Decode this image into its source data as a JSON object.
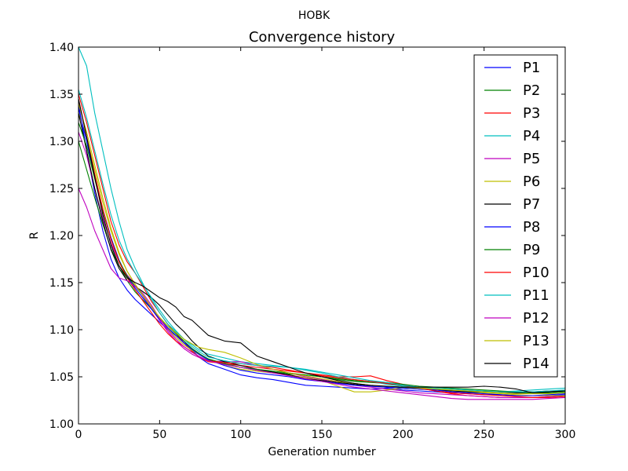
{
  "figure_title": "HOBK",
  "chart_data": {
    "type": "line",
    "title": "Convergence history",
    "xlabel": "Generation number",
    "ylabel": "R",
    "xlim": [
      0,
      300
    ],
    "ylim": [
      1.0,
      1.4
    ],
    "xticks": [
      0,
      50,
      100,
      150,
      200,
      250,
      300
    ],
    "yticks": [
      1.0,
      1.05,
      1.1,
      1.15,
      1.2,
      1.25,
      1.3,
      1.35,
      1.4
    ],
    "xtick_labels": [
      "0",
      "50",
      "100",
      "150",
      "200",
      "250",
      "300"
    ],
    "ytick_labels": [
      "1.00",
      "1.05",
      "1.10",
      "1.15",
      "1.20",
      "1.25",
      "1.30",
      "1.35",
      "1.40"
    ],
    "grid": false,
    "legend": "top-right",
    "x": [
      0,
      5,
      10,
      15,
      20,
      25,
      30,
      35,
      40,
      45,
      50,
      55,
      60,
      65,
      70,
      75,
      80,
      90,
      100,
      110,
      120,
      130,
      140,
      150,
      160,
      170,
      180,
      190,
      200,
      210,
      220,
      230,
      240,
      250,
      260,
      270,
      280,
      290,
      300
    ],
    "series": [
      {
        "name": "P1",
        "color": "#0000ff",
        "values": [
          1.34,
          1.29,
          1.245,
          1.205,
          1.175,
          1.155,
          1.142,
          1.132,
          1.124,
          1.116,
          1.108,
          1.1,
          1.094,
          1.088,
          1.078,
          1.07,
          1.064,
          1.058,
          1.052,
          1.049,
          1.047,
          1.044,
          1.041,
          1.04,
          1.039,
          1.038,
          1.037,
          1.038,
          1.036,
          1.035,
          1.034,
          1.033,
          1.032,
          1.031,
          1.031,
          1.03,
          1.03,
          1.03,
          1.031
        ]
      },
      {
        "name": "P2",
        "color": "#008000",
        "values": [
          1.3,
          1.27,
          1.24,
          1.212,
          1.186,
          1.168,
          1.152,
          1.14,
          1.131,
          1.122,
          1.112,
          1.102,
          1.094,
          1.086,
          1.079,
          1.073,
          1.068,
          1.064,
          1.06,
          1.057,
          1.055,
          1.053,
          1.052,
          1.05,
          1.047,
          1.045,
          1.044,
          1.043,
          1.04,
          1.038,
          1.037,
          1.036,
          1.035,
          1.034,
          1.034,
          1.033,
          1.033,
          1.033,
          1.034
        ]
      },
      {
        "name": "P3",
        "color": "#ff0000",
        "values": [
          1.35,
          1.32,
          1.285,
          1.25,
          1.215,
          1.19,
          1.172,
          1.16,
          1.145,
          1.13,
          1.118,
          1.106,
          1.096,
          1.086,
          1.077,
          1.07,
          1.066,
          1.064,
          1.062,
          1.06,
          1.058,
          1.056,
          1.054,
          1.052,
          1.05,
          1.05,
          1.051,
          1.046,
          1.042,
          1.038,
          1.035,
          1.032,
          1.03,
          1.029,
          1.028,
          1.028,
          1.028,
          1.029,
          1.03
        ]
      },
      {
        "name": "P4",
        "color": "#00bfbf",
        "values": [
          1.4,
          1.38,
          1.33,
          1.29,
          1.25,
          1.215,
          1.185,
          1.165,
          1.148,
          1.132,
          1.118,
          1.106,
          1.098,
          1.09,
          1.084,
          1.078,
          1.074,
          1.07,
          1.066,
          1.064,
          1.062,
          1.06,
          1.057,
          1.054,
          1.05,
          1.047,
          1.045,
          1.042,
          1.04,
          1.038,
          1.037,
          1.036,
          1.035,
          1.034,
          1.034,
          1.035,
          1.036,
          1.037,
          1.038
        ]
      },
      {
        "name": "P5",
        "color": "#bf00bf",
        "values": [
          1.31,
          1.285,
          1.25,
          1.218,
          1.192,
          1.172,
          1.158,
          1.148,
          1.135,
          1.122,
          1.11,
          1.098,
          1.088,
          1.08,
          1.074,
          1.07,
          1.067,
          1.066,
          1.066,
          1.062,
          1.058,
          1.054,
          1.05,
          1.047,
          1.044,
          1.041,
          1.039,
          1.037,
          1.035,
          1.033,
          1.032,
          1.031,
          1.03,
          1.029,
          1.028,
          1.028,
          1.028,
          1.029,
          1.03
        ]
      },
      {
        "name": "P6",
        "color": "#bfbf00",
        "values": [
          1.33,
          1.305,
          1.27,
          1.235,
          1.205,
          1.18,
          1.162,
          1.148,
          1.136,
          1.124,
          1.112,
          1.101,
          1.092,
          1.084,
          1.078,
          1.073,
          1.068,
          1.062,
          1.058,
          1.056,
          1.054,
          1.052,
          1.049,
          1.046,
          1.04,
          1.034,
          1.034,
          1.036,
          1.038,
          1.038,
          1.037,
          1.036,
          1.034,
          1.033,
          1.032,
          1.031,
          1.03,
          1.03,
          1.03
        ]
      },
      {
        "name": "P7",
        "color": "#000000",
        "values": [
          1.33,
          1.29,
          1.25,
          1.215,
          1.185,
          1.165,
          1.152,
          1.146,
          1.14,
          1.134,
          1.126,
          1.116,
          1.106,
          1.098,
          1.088,
          1.08,
          1.072,
          1.066,
          1.062,
          1.058,
          1.055,
          1.052,
          1.048,
          1.046,
          1.044,
          1.042,
          1.04,
          1.039,
          1.038,
          1.037,
          1.036,
          1.035,
          1.034,
          1.034,
          1.034,
          1.033,
          1.034,
          1.035,
          1.035
        ]
      },
      {
        "name": "P8",
        "color": "#0000ff",
        "values": [
          1.335,
          1.3,
          1.262,
          1.228,
          1.198,
          1.174,
          1.156,
          1.144,
          1.133,
          1.122,
          1.111,
          1.102,
          1.094,
          1.086,
          1.079,
          1.073,
          1.068,
          1.062,
          1.057,
          1.054,
          1.052,
          1.05,
          1.047,
          1.045,
          1.043,
          1.041,
          1.04,
          1.039,
          1.038,
          1.037,
          1.036,
          1.034,
          1.033,
          1.032,
          1.031,
          1.03,
          1.03,
          1.031,
          1.032
        ]
      },
      {
        "name": "P9",
        "color": "#008000",
        "values": [
          1.32,
          1.295,
          1.26,
          1.226,
          1.196,
          1.173,
          1.157,
          1.146,
          1.136,
          1.124,
          1.113,
          1.104,
          1.096,
          1.088,
          1.08,
          1.074,
          1.069,
          1.064,
          1.06,
          1.058,
          1.056,
          1.054,
          1.052,
          1.05,
          1.048,
          1.046,
          1.045,
          1.044,
          1.042,
          1.04,
          1.039,
          1.038,
          1.037,
          1.036,
          1.035,
          1.034,
          1.034,
          1.034,
          1.035
        ]
      },
      {
        "name": "P10",
        "color": "#ff0000",
        "values": [
          1.345,
          1.305,
          1.265,
          1.228,
          1.196,
          1.172,
          1.155,
          1.142,
          1.13,
          1.118,
          1.106,
          1.096,
          1.088,
          1.082,
          1.076,
          1.071,
          1.067,
          1.065,
          1.064,
          1.062,
          1.06,
          1.057,
          1.054,
          1.051,
          1.049,
          1.047,
          1.045,
          1.043,
          1.041,
          1.038,
          1.035,
          1.033,
          1.032,
          1.031,
          1.03,
          1.029,
          1.028,
          1.028,
          1.029
        ]
      },
      {
        "name": "P11",
        "color": "#00bfbf",
        "values": [
          1.355,
          1.325,
          1.29,
          1.255,
          1.222,
          1.195,
          1.175,
          1.16,
          1.147,
          1.134,
          1.121,
          1.109,
          1.099,
          1.09,
          1.082,
          1.076,
          1.071,
          1.067,
          1.064,
          1.062,
          1.061,
          1.06,
          1.058,
          1.055,
          1.052,
          1.049,
          1.046,
          1.044,
          1.041,
          1.039,
          1.038,
          1.037,
          1.036,
          1.035,
          1.034,
          1.034,
          1.034,
          1.035,
          1.036
        ]
      },
      {
        "name": "P12",
        "color": "#bf00bf",
        "values": [
          1.25,
          1.23,
          1.205,
          1.185,
          1.165,
          1.155,
          1.152,
          1.146,
          1.138,
          1.126,
          1.112,
          1.1,
          1.09,
          1.082,
          1.076,
          1.071,
          1.067,
          1.063,
          1.06,
          1.057,
          1.054,
          1.051,
          1.048,
          1.045,
          1.042,
          1.039,
          1.037,
          1.035,
          1.033,
          1.031,
          1.029,
          1.027,
          1.026,
          1.026,
          1.026,
          1.026,
          1.026,
          1.027,
          1.028
        ]
      },
      {
        "name": "P13",
        "color": "#bfbf00",
        "values": [
          1.34,
          1.31,
          1.275,
          1.24,
          1.208,
          1.182,
          1.162,
          1.148,
          1.136,
          1.124,
          1.113,
          1.104,
          1.097,
          1.09,
          1.085,
          1.081,
          1.079,
          1.076,
          1.07,
          1.063,
          1.058,
          1.054,
          1.051,
          1.048,
          1.045,
          1.043,
          1.041,
          1.04,
          1.039,
          1.038,
          1.037,
          1.036,
          1.035,
          1.034,
          1.033,
          1.032,
          1.032,
          1.032,
          1.033
        ]
      },
      {
        "name": "P14",
        "color": "#000000",
        "values": [
          1.345,
          1.305,
          1.262,
          1.222,
          1.19,
          1.168,
          1.155,
          1.15,
          1.146,
          1.14,
          1.134,
          1.13,
          1.124,
          1.114,
          1.11,
          1.102,
          1.094,
          1.088,
          1.086,
          1.072,
          1.066,
          1.06,
          1.054,
          1.05,
          1.046,
          1.043,
          1.041,
          1.04,
          1.039,
          1.039,
          1.039,
          1.039,
          1.039,
          1.04,
          1.039,
          1.037,
          1.033,
          1.034,
          1.035
        ]
      }
    ]
  }
}
